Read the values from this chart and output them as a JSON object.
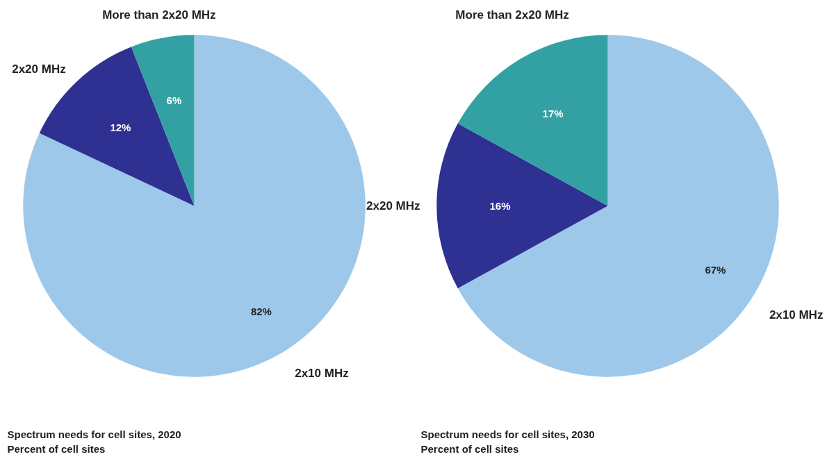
{
  "chart_data": [
    {
      "type": "pie",
      "title": "Spectrum needs for cell sites, 2020",
      "subtitle": "Percent of cell sites",
      "categories": [
        "2x10 MHz",
        "2x20 MHz",
        "More than 2x20 MHz"
      ],
      "values": [
        82,
        12,
        6
      ],
      "colors": [
        "#9dc8ea",
        "#2e3192",
        "#33a1a3"
      ],
      "value_labels": [
        "82%",
        "12%",
        "6%"
      ]
    },
    {
      "type": "pie",
      "title": "Spectrum needs for cell sites, 2030",
      "subtitle": "Percent of cell sites",
      "categories": [
        "2x10 MHz",
        "2x20 MHz",
        "More than 2x20 MHz"
      ],
      "values": [
        67,
        16,
        17
      ],
      "colors": [
        "#9dc8ea",
        "#2e3192",
        "#33a1a3"
      ],
      "value_labels": [
        "67%",
        "16%",
        "17%"
      ]
    }
  ]
}
